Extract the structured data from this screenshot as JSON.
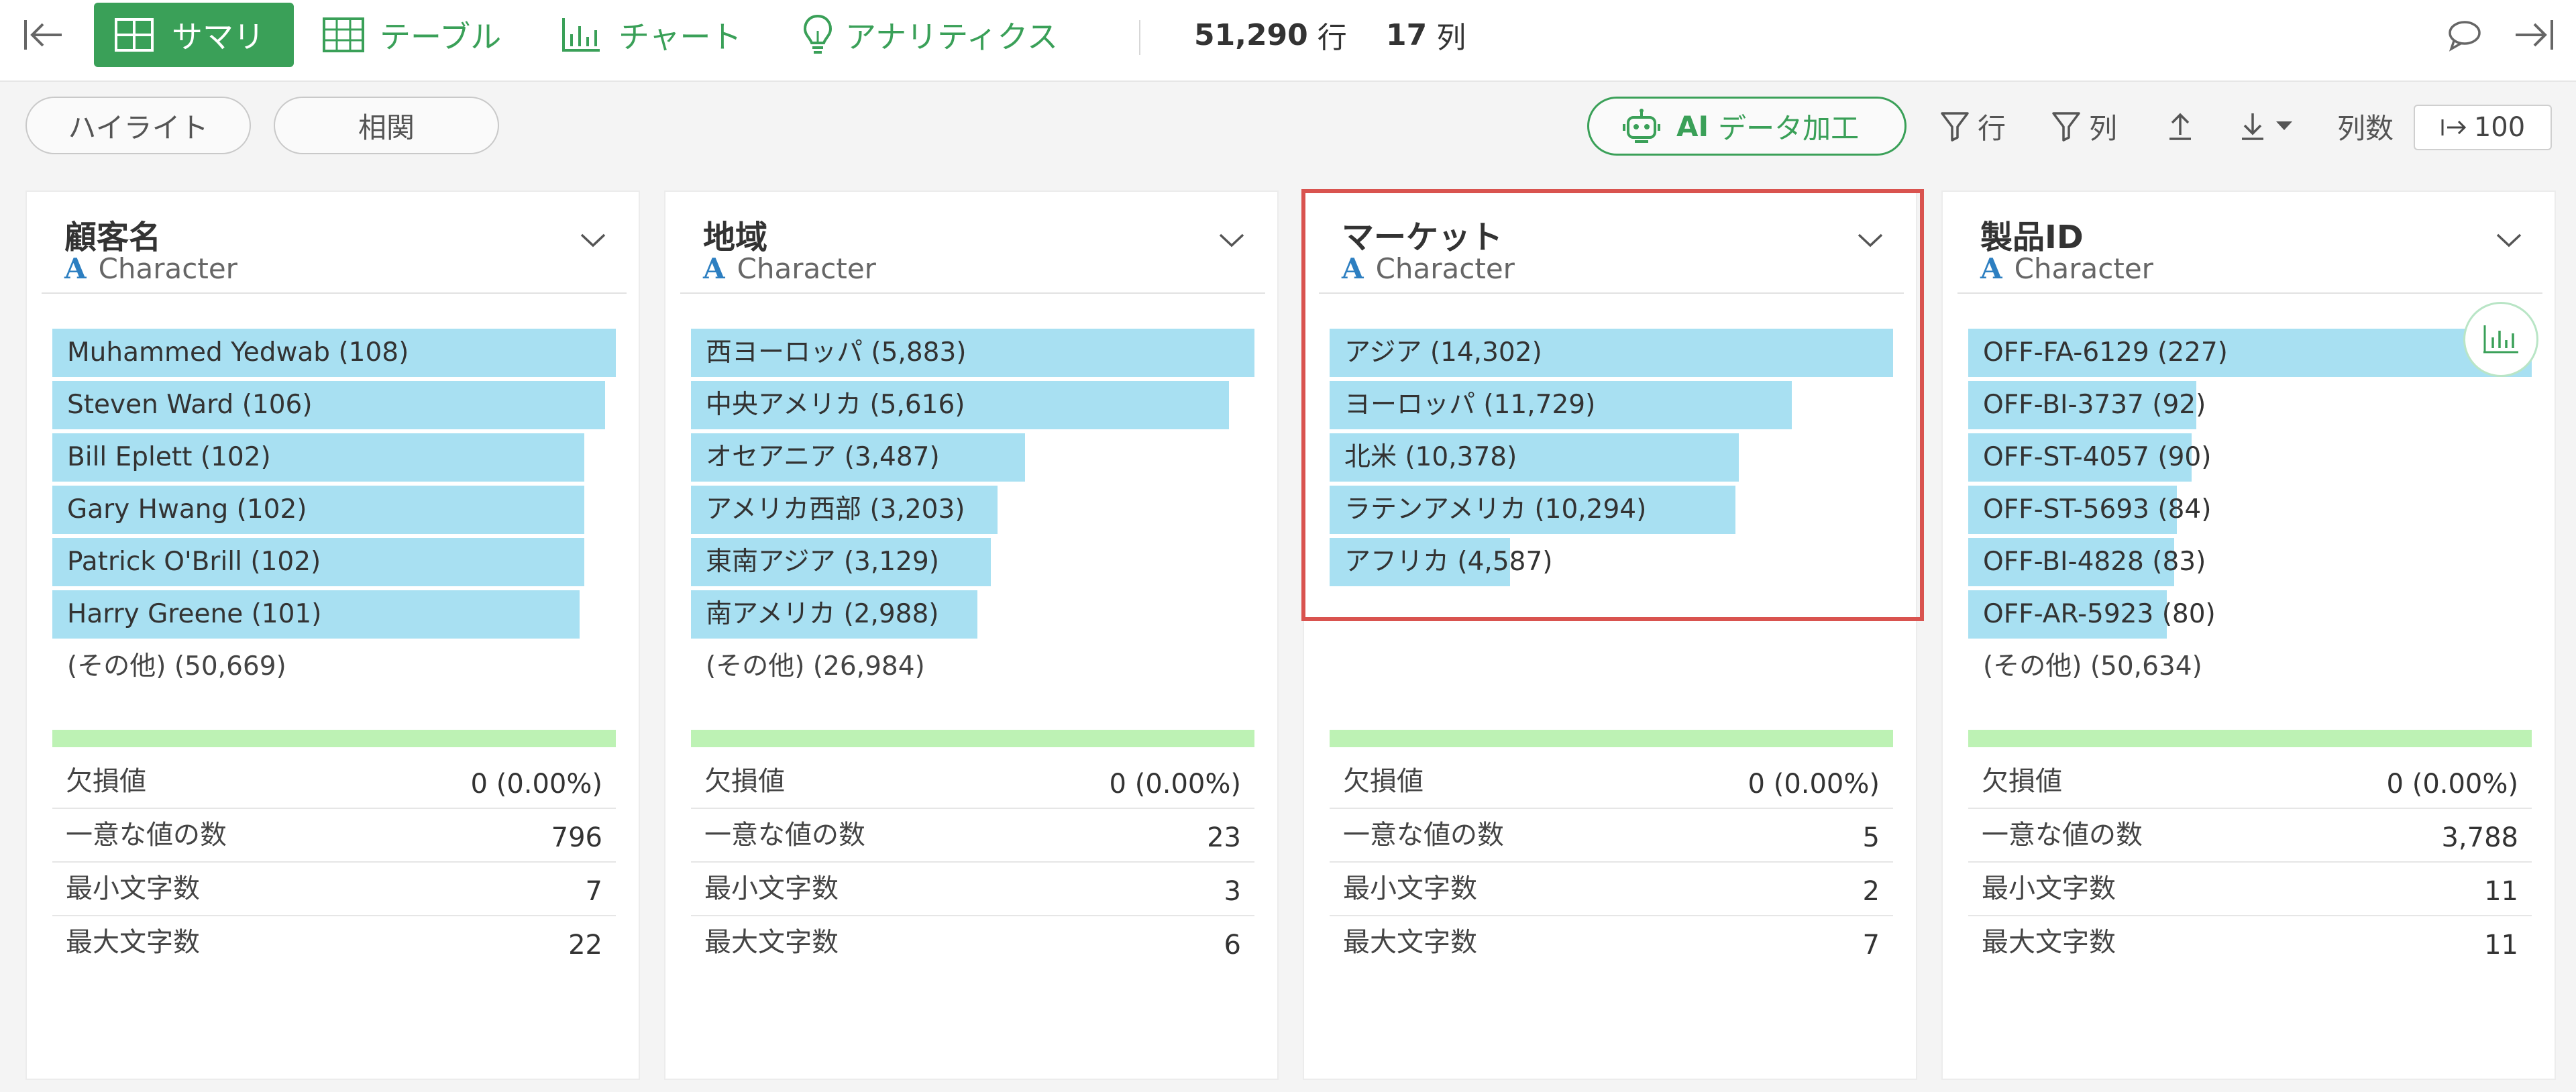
{
  "topbar": {
    "tabs": {
      "summary": "サマリ",
      "table": "テーブル",
      "chart": "チャート",
      "analytics": "アナリティクス"
    },
    "rows_count": "51,290",
    "rows_unit": "行",
    "cols_count": "17",
    "cols_unit": "列"
  },
  "toolbar": {
    "highlight": "ハイライト",
    "correlation": "相関",
    "ai_prefix": "AI",
    "ai_label": "データ加工",
    "filter_rows": "行",
    "filter_cols": "列",
    "col_count_label": "列数",
    "col_count_value": "100"
  },
  "colors": {
    "brand_green": "#3aa058",
    "bar_blue": "#a8e0f2",
    "summary_green": "#bdf2b4",
    "highlight_red": "#d9534f",
    "type_icon_blue": "#2d7fc1"
  },
  "columns": [
    {
      "name": "顧客名",
      "type": "Character",
      "bars": [
        {
          "label": "Muhammed Yedwab (108)",
          "count": 108
        },
        {
          "label": "Steven Ward (106)",
          "count": 106
        },
        {
          "label": "Bill Eplett (102)",
          "count": 102
        },
        {
          "label": "Gary Hwang (102)",
          "count": 102
        },
        {
          "label": "Patrick O'Brill (102)",
          "count": 102
        },
        {
          "label": "Harry Greene (101)",
          "count": 101
        }
      ],
      "other": "(その他) (50,669)",
      "stats": [
        {
          "label": "欠損値",
          "value": "0 (0.00%)"
        },
        {
          "label": "一意な値の数",
          "value": "796"
        },
        {
          "label": "最小文字数",
          "value": "7"
        },
        {
          "label": "最大文字数",
          "value": "22"
        }
      ]
    },
    {
      "name": "地域",
      "type": "Character",
      "bars": [
        {
          "label": "西ヨーロッパ (5,883)",
          "count": 5883
        },
        {
          "label": "中央アメリカ (5,616)",
          "count": 5616
        },
        {
          "label": "オセアニア (3,487)",
          "count": 3487
        },
        {
          "label": "アメリカ西部 (3,203)",
          "count": 3203
        },
        {
          "label": "東南アジア (3,129)",
          "count": 3129
        },
        {
          "label": "南アメリカ (2,988)",
          "count": 2988
        }
      ],
      "other": "(その他) (26,984)",
      "stats": [
        {
          "label": "欠損値",
          "value": "0 (0.00%)"
        },
        {
          "label": "一意な値の数",
          "value": "23"
        },
        {
          "label": "最小文字数",
          "value": "3"
        },
        {
          "label": "最大文字数",
          "value": "6"
        }
      ]
    },
    {
      "name": "マーケット",
      "type": "Character",
      "bars": [
        {
          "label": "アジア (14,302)",
          "count": 14302
        },
        {
          "label": "ヨーロッパ (11,729)",
          "count": 11729
        },
        {
          "label": "北米 (10,378)",
          "count": 10378
        },
        {
          "label": "ラテンアメリカ (10,294)",
          "count": 10294
        },
        {
          "label": "アフリカ (4,587)",
          "count": 4587
        }
      ],
      "other": "",
      "stats": [
        {
          "label": "欠損値",
          "value": "0 (0.00%)"
        },
        {
          "label": "一意な値の数",
          "value": "5"
        },
        {
          "label": "最小文字数",
          "value": "2"
        },
        {
          "label": "最大文字数",
          "value": "7"
        }
      ]
    },
    {
      "name": "製品ID",
      "type": "Character",
      "bars": [
        {
          "label": "OFF-FA-6129 (227)",
          "count": 227
        },
        {
          "label": "OFF-BI-3737 (92)",
          "count": 92
        },
        {
          "label": "OFF-ST-4057 (90)",
          "count": 90
        },
        {
          "label": "OFF-ST-5693 (84)",
          "count": 84
        },
        {
          "label": "OFF-BI-4828 (83)",
          "count": 83
        },
        {
          "label": "OFF-AR-5923 (80)",
          "count": 80
        }
      ],
      "other": "(その他) (50,634)",
      "stats": [
        {
          "label": "欠損値",
          "value": "0 (0.00%)"
        },
        {
          "label": "一意な値の数",
          "value": "3,788"
        },
        {
          "label": "最小文字数",
          "value": "11"
        },
        {
          "label": "最大文字数",
          "value": "11"
        }
      ]
    }
  ]
}
